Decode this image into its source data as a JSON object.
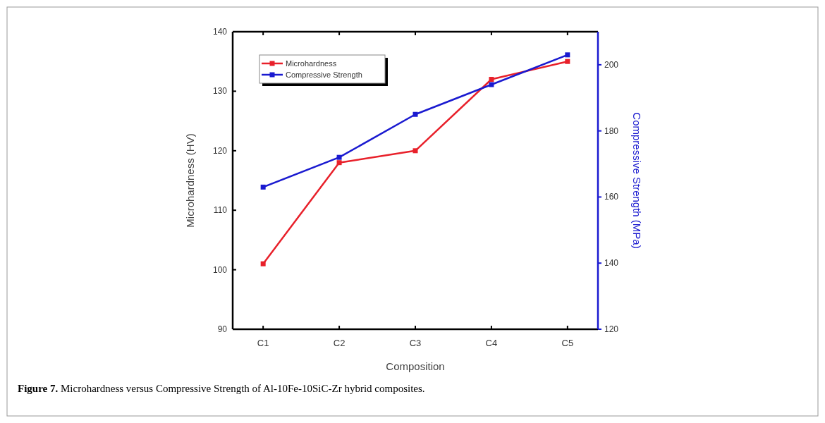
{
  "chart_data": {
    "type": "line",
    "xlabel": "Composition",
    "ylabel": "Microhardness (HV)",
    "y2label": "Compressive Strength (MPa)",
    "categories": [
      "C1",
      "C2",
      "C3",
      "C4",
      "C5"
    ],
    "series": [
      {
        "name": "Microhardness",
        "color": "#e8202a",
        "values": [
          101,
          118,
          120,
          132,
          135
        ]
      },
      {
        "name": "Compressive Strength",
        "color": "#1a1ad0",
        "values": [
          163,
          172,
          185,
          194,
          203
        ],
        "axis": "y2"
      }
    ],
    "ylim": [
      90,
      140
    ],
    "yticks": [
      90,
      100,
      110,
      120,
      130,
      140
    ],
    "y2lim": [
      120,
      210
    ],
    "y2ticks": [
      120,
      140,
      160,
      180,
      200
    ],
    "legend": "top left",
    "marker": "square",
    "line_style": "solid",
    "grid": false,
    "annotations": [
      "Figure 7. Microhardness versus Compressive Strength of Al-10Fe-10SiC-Zr hybrid composites."
    ]
  }
}
